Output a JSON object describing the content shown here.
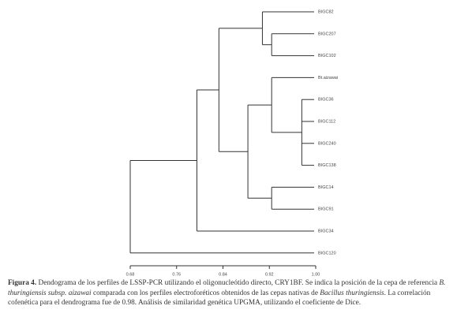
{
  "chart_data": {
    "type": "dendrogram",
    "xlim": [
      0.68,
      1
    ],
    "xticks": [
      0.68,
      0.76,
      0.84,
      0.92,
      {
        "value": 1,
        "label": "1.00"
      }
    ],
    "color": "#333333",
    "tree": {
      "height": 0.68,
      "children": [
        {
          "height": 0.795,
          "children": [
            {
              "height": 0.833,
              "children": [
                {
                  "height": 0.908,
                  "children": [
                    {
                      "label": "BIGC82"
                    },
                    {
                      "height": 0.924,
                      "children": [
                        {
                          "label": "BIGC207"
                        },
                        {
                          "label": "BIGC102"
                        }
                      ]
                    }
                  ]
                },
                {
                  "height": 0.883,
                  "children": [
                    {
                      "height": 0.924,
                      "children": [
                        {
                          "label": "Bt.aizawai"
                        },
                        {
                          "height": 0.976,
                          "children": [
                            {
                              "label": "BIGC36"
                            },
                            {
                              "label": "BIGC112"
                            },
                            {
                              "label": "BIGC240"
                            },
                            {
                              "label": "BIGC138"
                            }
                          ]
                        }
                      ]
                    },
                    {
                      "height": 0.924,
                      "children": [
                        {
                          "label": "BIGC14"
                        },
                        {
                          "label": "BIGC91"
                        }
                      ]
                    }
                  ]
                }
              ]
            },
            {
              "label": "BIGC34"
            }
          ]
        },
        {
          "label": "BIGC120"
        }
      ]
    }
  },
  "caption": {
    "label": "Figura 4.",
    "parts": [
      "Dendograma de los perfiles de LSSP-PCR utilizando el oligonucleótido directo, CRY1BF. Se indica la posición de la cepa de referencia ",
      "B. thuringiensis subsp. aizawai",
      " comparada con los perfiles electroforéticos obtenidos de las cepas nativas de ",
      "Bacillus thuringiensis",
      ". La correlación cofenética para el dendrograma fue de 0.98. Análisis de similaridad genética UPGMA, utilizando el coeficiente de Dice."
    ]
  }
}
